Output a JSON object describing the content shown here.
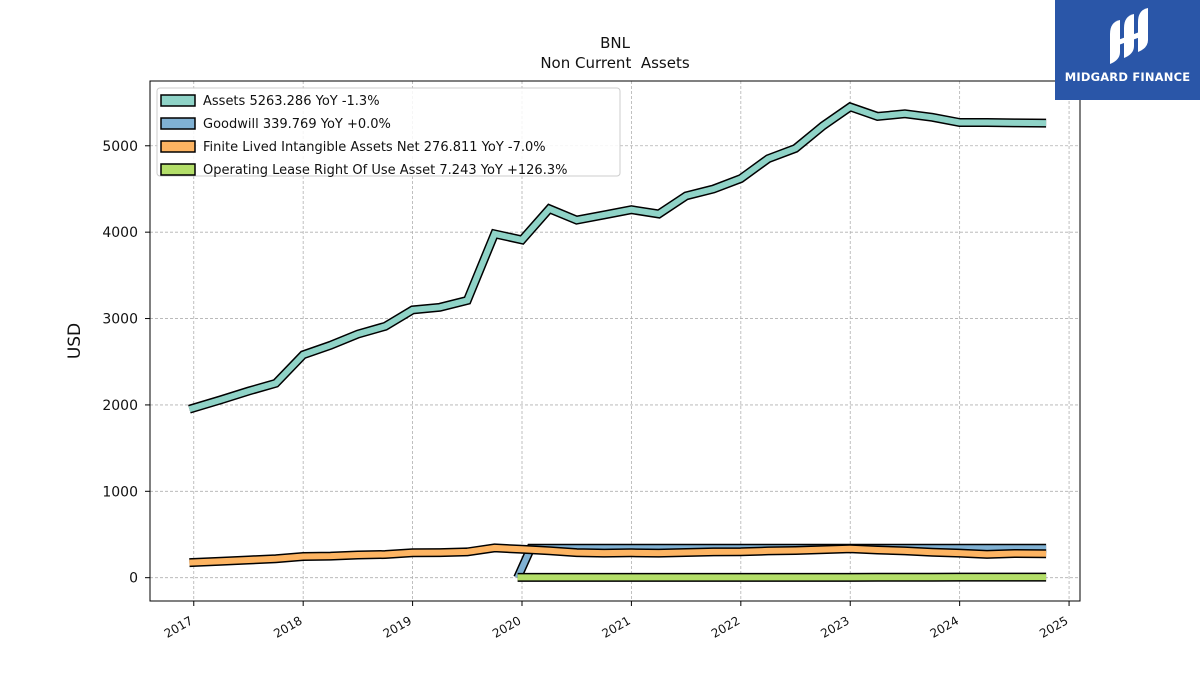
{
  "brand": {
    "name": "MIDGARD FINANCE",
    "color": "#2a56a8"
  },
  "chart_data": {
    "type": "line",
    "title": "BNL",
    "subtitle": "Non Current  Assets",
    "ylabel": "USD",
    "xlabel": "",
    "xlim": [
      2016.6,
      2025.1
    ],
    "ylim": [
      -270,
      5750
    ],
    "xticks": [
      2017,
      2018,
      2019,
      2020,
      2021,
      2022,
      2023,
      2024,
      2025
    ],
    "yticks": [
      0,
      1000,
      2000,
      3000,
      4000,
      5000
    ],
    "grid": true,
    "legend_position": "top-left",
    "series": [
      {
        "name": "Assets",
        "legend": "Assets  5263.286 YoY -1.3%",
        "color": "#8fd3c7",
        "x": [
          2016.96,
          2017.25,
          2017.5,
          2017.75,
          2018.0,
          2018.25,
          2018.5,
          2018.75,
          2019.0,
          2019.25,
          2019.5,
          2019.75,
          2020.0,
          2020.25,
          2020.5,
          2020.75,
          2021.0,
          2021.25,
          2021.5,
          2021.75,
          2022.0,
          2022.25,
          2022.5,
          2022.75,
          2023.0,
          2023.25,
          2023.5,
          2023.75,
          2024.0,
          2024.25,
          2024.5,
          2024.79
        ],
        "y": [
          1950,
          2060,
          2160,
          2250,
          2580,
          2690,
          2820,
          2910,
          3100,
          3130,
          3210,
          3980,
          3910,
          4270,
          4140,
          4200,
          4260,
          4210,
          4420,
          4500,
          4620,
          4850,
          4970,
          5230,
          5450,
          5340,
          5370,
          5330,
          5270,
          5270,
          5265,
          5263
        ]
      },
      {
        "name": "Goodwill",
        "legend": "Goodwill  339.769 YoY +0.0%",
        "color": "#80b1d3",
        "x": [
          2019.96,
          2020.08,
          2020.25,
          2020.5,
          2020.75,
          2021.0,
          2021.25,
          2021.5,
          2021.75,
          2022.0,
          2022.25,
          2022.5,
          2022.75,
          2023.0,
          2023.25,
          2023.5,
          2023.75,
          2024.0,
          2024.25,
          2024.5,
          2024.79
        ],
        "y": [
          0,
          340,
          340,
          340,
          340,
          340,
          340,
          340,
          340,
          340,
          340,
          340,
          340,
          340,
          340,
          340,
          340,
          340,
          340,
          340,
          340
        ]
      },
      {
        "name": "Finite Lived Intangible Assets Net",
        "legend": "Finite Lived Intangible Assets Net  276.811 YoY -7.0%",
        "color": "#fdb462",
        "x": [
          2016.96,
          2017.25,
          2017.5,
          2017.75,
          2018.0,
          2018.25,
          2018.5,
          2018.75,
          2019.0,
          2019.25,
          2019.5,
          2019.75,
          2020.0,
          2020.25,
          2020.5,
          2020.75,
          2021.0,
          2021.25,
          2021.5,
          2021.75,
          2022.0,
          2022.25,
          2022.5,
          2022.75,
          2023.0,
          2023.25,
          2023.5,
          2023.75,
          2024.0,
          2024.25,
          2024.5,
          2024.79
        ],
        "y": [
          175,
          190,
          205,
          220,
          245,
          250,
          262,
          268,
          288,
          290,
          298,
          345,
          328,
          312,
          290,
          285,
          288,
          285,
          292,
          298,
          300,
          310,
          315,
          325,
          335,
          320,
          310,
          295,
          285,
          270,
          280,
          277
        ]
      },
      {
        "name": "Operating Lease Right Of Use Asset",
        "legend": "Operating Lease Right Of Use Asset  7.243 YoY +126.3%",
        "color": "#b3de69",
        "x": [
          2019.96,
          2020.25,
          2020.5,
          2020.75,
          2021.0,
          2021.25,
          2021.5,
          2021.75,
          2022.0,
          2022.25,
          2022.5,
          2022.75,
          2023.0,
          2023.25,
          2023.5,
          2023.75,
          2024.0,
          2024.25,
          2024.5,
          2024.79
        ],
        "y": [
          3,
          3,
          3,
          3,
          3,
          3,
          3,
          3,
          3,
          3,
          3,
          3,
          3,
          4,
          5,
          6,
          7,
          7,
          7,
          7
        ]
      }
    ]
  }
}
